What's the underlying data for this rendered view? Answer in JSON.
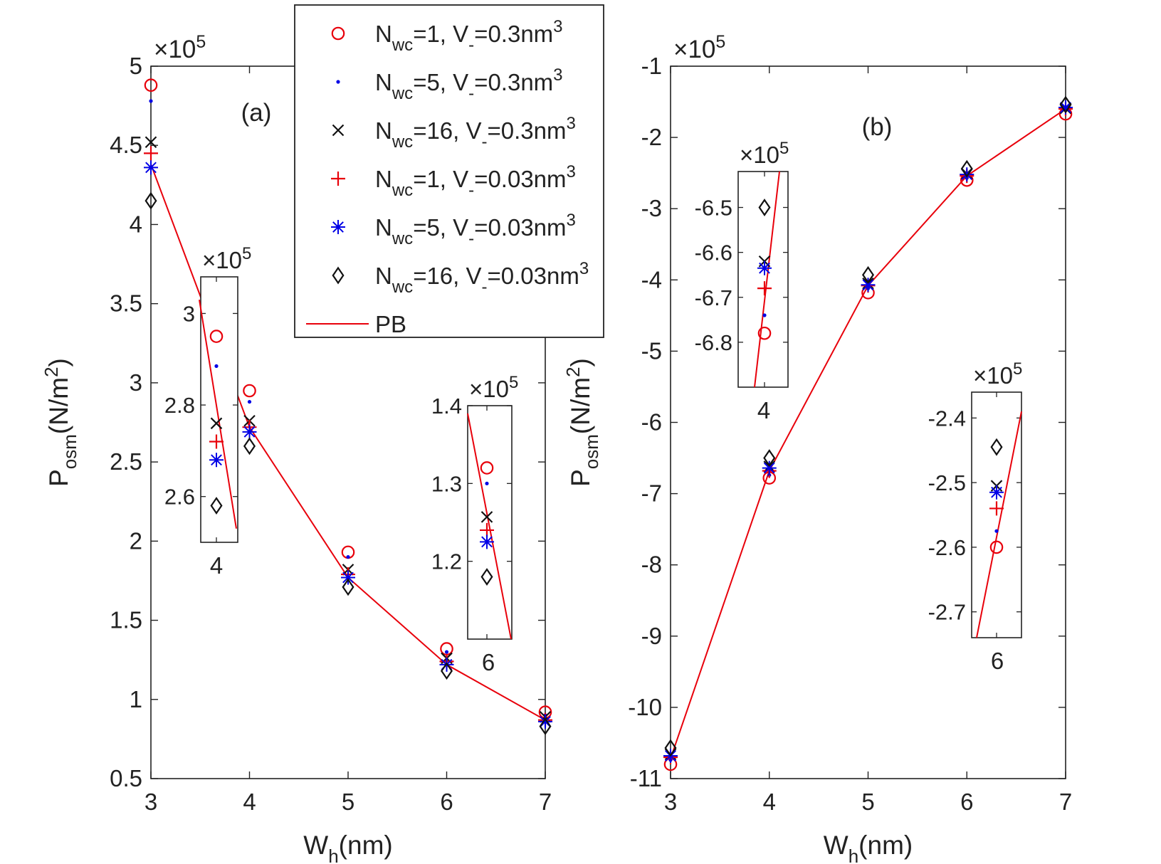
{
  "colors": {
    "red": "#e8000b",
    "blue": "#0000e6",
    "black": "#111111",
    "axis": "#222222"
  },
  "legend": {
    "entries": [
      {
        "marker": "o",
        "color": "red",
        "base": "N",
        "sub": "wc",
        "rest": "=1, V",
        "sub2": "-",
        "rest2": "=0.3nm",
        "sup": "3"
      },
      {
        "marker": "dot",
        "color": "blue",
        "base": "N",
        "sub": "wc",
        "rest": "=5, V",
        "sub2": "-",
        "rest2": "=0.3nm",
        "sup": "3"
      },
      {
        "marker": "x",
        "color": "black",
        "base": "N",
        "sub": "wc",
        "rest": "=16, V",
        "sub2": "-",
        "rest2": "=0.3nm",
        "sup": "3"
      },
      {
        "marker": "+",
        "color": "red",
        "base": "N",
        "sub": "wc",
        "rest": "=1, V",
        "sub2": "-",
        "rest2": "=0.03nm",
        "sup": "3"
      },
      {
        "marker": "*",
        "color": "blue",
        "base": "N",
        "sub": "wc",
        "rest": "=5, V",
        "sub2": "-",
        "rest2": "=0.03nm",
        "sup": "3"
      },
      {
        "marker": "d",
        "color": "black",
        "base": "N",
        "sub": "wc",
        "rest": "=16, V",
        "sub2": "-",
        "rest2": "=0.03nm",
        "sup": "3"
      },
      {
        "marker": "line",
        "color": "red",
        "base": "PB",
        "sub": "",
        "rest": "",
        "sub2": "",
        "rest2": "",
        "sup": ""
      }
    ]
  },
  "chart_data": [
    {
      "id": "a",
      "type": "scatter",
      "panel_label": "(a)",
      "xlabel": {
        "base": "W",
        "sub": "h",
        "rest": "(nm)"
      },
      "ylabel": {
        "base": "P",
        "sub": "osm",
        "rest": "(N/m",
        "sup": "2",
        "end": ")"
      },
      "exponent": {
        "times": "×10",
        "power": "5"
      },
      "xlim": [
        3,
        7
      ],
      "ylim": [
        0.5,
        5
      ],
      "xticks": [
        3,
        4,
        5,
        6,
        7
      ],
      "xtick_labels": [
        "3",
        "4",
        "5",
        "6",
        "7"
      ],
      "yticks": [
        0.5,
        1,
        1.5,
        2,
        2.5,
        3,
        3.5,
        4,
        4.5,
        5
      ],
      "ytick_labels": [
        "0.5",
        "1",
        "1.5",
        "2",
        "2.5",
        "3",
        "3.5",
        "4",
        "4.5",
        "5"
      ],
      "x": [
        3,
        4,
        5,
        6,
        7
      ],
      "series": [
        {
          "name": "Nwc=1, V-=0.3nm3",
          "marker": "o",
          "color": "red",
          "values": [
            4.88,
            2.95,
            1.93,
            1.32,
            0.92
          ]
        },
        {
          "name": "Nwc=5, V-=0.3nm3",
          "marker": "dot",
          "color": "blue",
          "values": [
            4.78,
            2.88,
            1.9,
            1.3,
            0.9
          ]
        },
        {
          "name": "Nwc=16, V-=0.3nm3",
          "marker": "x",
          "color": "black",
          "values": [
            4.52,
            2.76,
            1.82,
            1.26,
            0.89
          ]
        },
        {
          "name": "Nwc=1, V-=0.03nm3",
          "marker": "+",
          "color": "red",
          "values": [
            4.45,
            2.72,
            1.79,
            1.24,
            0.87
          ]
        },
        {
          "name": "Nwc=5, V-=0.03nm3",
          "marker": "*",
          "color": "blue",
          "values": [
            4.36,
            2.69,
            1.77,
            1.22,
            0.86
          ]
        },
        {
          "name": "Nwc=16, V-=0.03nm3",
          "marker": "d",
          "color": "black",
          "values": [
            4.15,
            2.6,
            1.71,
            1.18,
            0.83
          ]
        },
        {
          "name": "PB",
          "marker": "line",
          "color": "red",
          "values": [
            4.38,
            2.72,
            1.77,
            1.22,
            0.87
          ]
        }
      ],
      "insets": [
        {
          "id": "a4",
          "xlabel": "4",
          "exponent": {
            "times": "×10",
            "power": "5"
          },
          "ylim": [
            2.5,
            3.08
          ],
          "yticks": [
            2.6,
            2.8,
            3.0
          ],
          "ytick_labels": [
            "2.6",
            "2.8",
            "3"
          ],
          "points": {
            "o": 2.95,
            "dot": 2.885,
            "x": 2.76,
            "+": 2.72,
            "*": 2.68,
            "d": 2.58
          },
          "pb_line": [
            3.03,
            2.53
          ]
        },
        {
          "id": "a6",
          "xlabel": "6",
          "exponent": {
            "times": "×10",
            "power": "5"
          },
          "ylim": [
            1.1,
            1.4
          ],
          "yticks": [
            1.2,
            1.3,
            1.4
          ],
          "ytick_labels": [
            "1.2",
            "1.3",
            "1.4"
          ],
          "points": {
            "o": 1.32,
            "dot": 1.3,
            "x": 1.257,
            "+": 1.24,
            "*": 1.225,
            "d": 1.18
          },
          "pb_line": [
            1.39,
            1.1
          ]
        }
      ]
    },
    {
      "id": "b",
      "type": "scatter",
      "panel_label": "(b)",
      "xlabel": {
        "base": "W",
        "sub": "h",
        "rest": "(nm)"
      },
      "ylabel": {
        "base": "P",
        "sub": "osm",
        "rest": "(N/m",
        "sup": "2",
        "end": ")"
      },
      "exponent": {
        "times": "×10",
        "power": "5"
      },
      "xlim": [
        3,
        7
      ],
      "ylim": [
        -11,
        -1
      ],
      "xticks": [
        3,
        4,
        5,
        6,
        7
      ],
      "xtick_labels": [
        "3",
        "4",
        "5",
        "6",
        "7"
      ],
      "yticks": [
        -11,
        -10,
        -9,
        -8,
        -7,
        -6,
        -5,
        -4,
        -3,
        -2,
        -1
      ],
      "ytick_labels": [
        "-11",
        "-10",
        "-9",
        "-8",
        "-7",
        "-6",
        "-5",
        "-4",
        "-3",
        "-2",
        "-1"
      ],
      "x": [
        3,
        4,
        5,
        6,
        7
      ],
      "series": [
        {
          "name": "Nwc=1, V-=0.3nm3",
          "marker": "o",
          "color": "red",
          "values": [
            -10.8,
            -6.78,
            -4.18,
            -2.6,
            -1.67
          ]
        },
        {
          "name": "Nwc=5, V-=0.3nm3",
          "marker": "dot",
          "color": "blue",
          "values": [
            -10.74,
            -6.74,
            -4.12,
            -2.57,
            -1.62
          ]
        },
        {
          "name": "Nwc=16, V-=0.3nm3",
          "marker": "x",
          "color": "black",
          "values": [
            -10.66,
            -6.62,
            -4.05,
            -2.51,
            -1.59
          ]
        },
        {
          "name": "Nwc=1, V-=0.03nm3",
          "marker": "+",
          "color": "red",
          "values": [
            -10.7,
            -6.68,
            -4.08,
            -2.54,
            -1.6
          ]
        },
        {
          "name": "Nwc=5, V-=0.03nm3",
          "marker": "*",
          "color": "blue",
          "values": [
            -10.68,
            -6.64,
            -4.07,
            -2.52,
            -1.58
          ]
        },
        {
          "name": "Nwc=16, V-=0.03nm3",
          "marker": "d",
          "color": "black",
          "values": [
            -10.57,
            -6.5,
            -3.93,
            -2.44,
            -1.54
          ]
        },
        {
          "name": "PB",
          "marker": "line",
          "color": "red",
          "values": [
            -10.72,
            -6.68,
            -4.08,
            -2.54,
            -1.6
          ]
        }
      ],
      "insets": [
        {
          "id": "b4",
          "xlabel": "4",
          "exponent": {
            "times": "×10",
            "power": "5"
          },
          "ylim": [
            -6.9,
            -6.42
          ],
          "yticks": [
            -6.8,
            -6.7,
            -6.6,
            -6.5
          ],
          "ytick_labels": [
            "-6.8",
            "-6.7",
            "-6.6",
            "-6.5"
          ],
          "points": {
            "o": -6.78,
            "dot": -6.74,
            "x": -6.62,
            "+": -6.68,
            "*": -6.635,
            "d": -6.5
          },
          "pb_line": [
            -6.9,
            -6.42
          ]
        },
        {
          "id": "b6",
          "xlabel": "6",
          "exponent": {
            "times": "×10",
            "power": "5"
          },
          "ylim": [
            -2.74,
            -2.36
          ],
          "yticks": [
            -2.7,
            -2.6,
            -2.5,
            -2.4
          ],
          "ytick_labels": [
            "-2.7",
            "-2.6",
            "-2.5",
            "-2.4"
          ],
          "points": {
            "o": -2.6,
            "dot": -2.575,
            "x": -2.505,
            "+": -2.54,
            "*": -2.515,
            "d": -2.445
          },
          "pb_line": [
            -2.74,
            -2.39
          ]
        }
      ]
    }
  ]
}
